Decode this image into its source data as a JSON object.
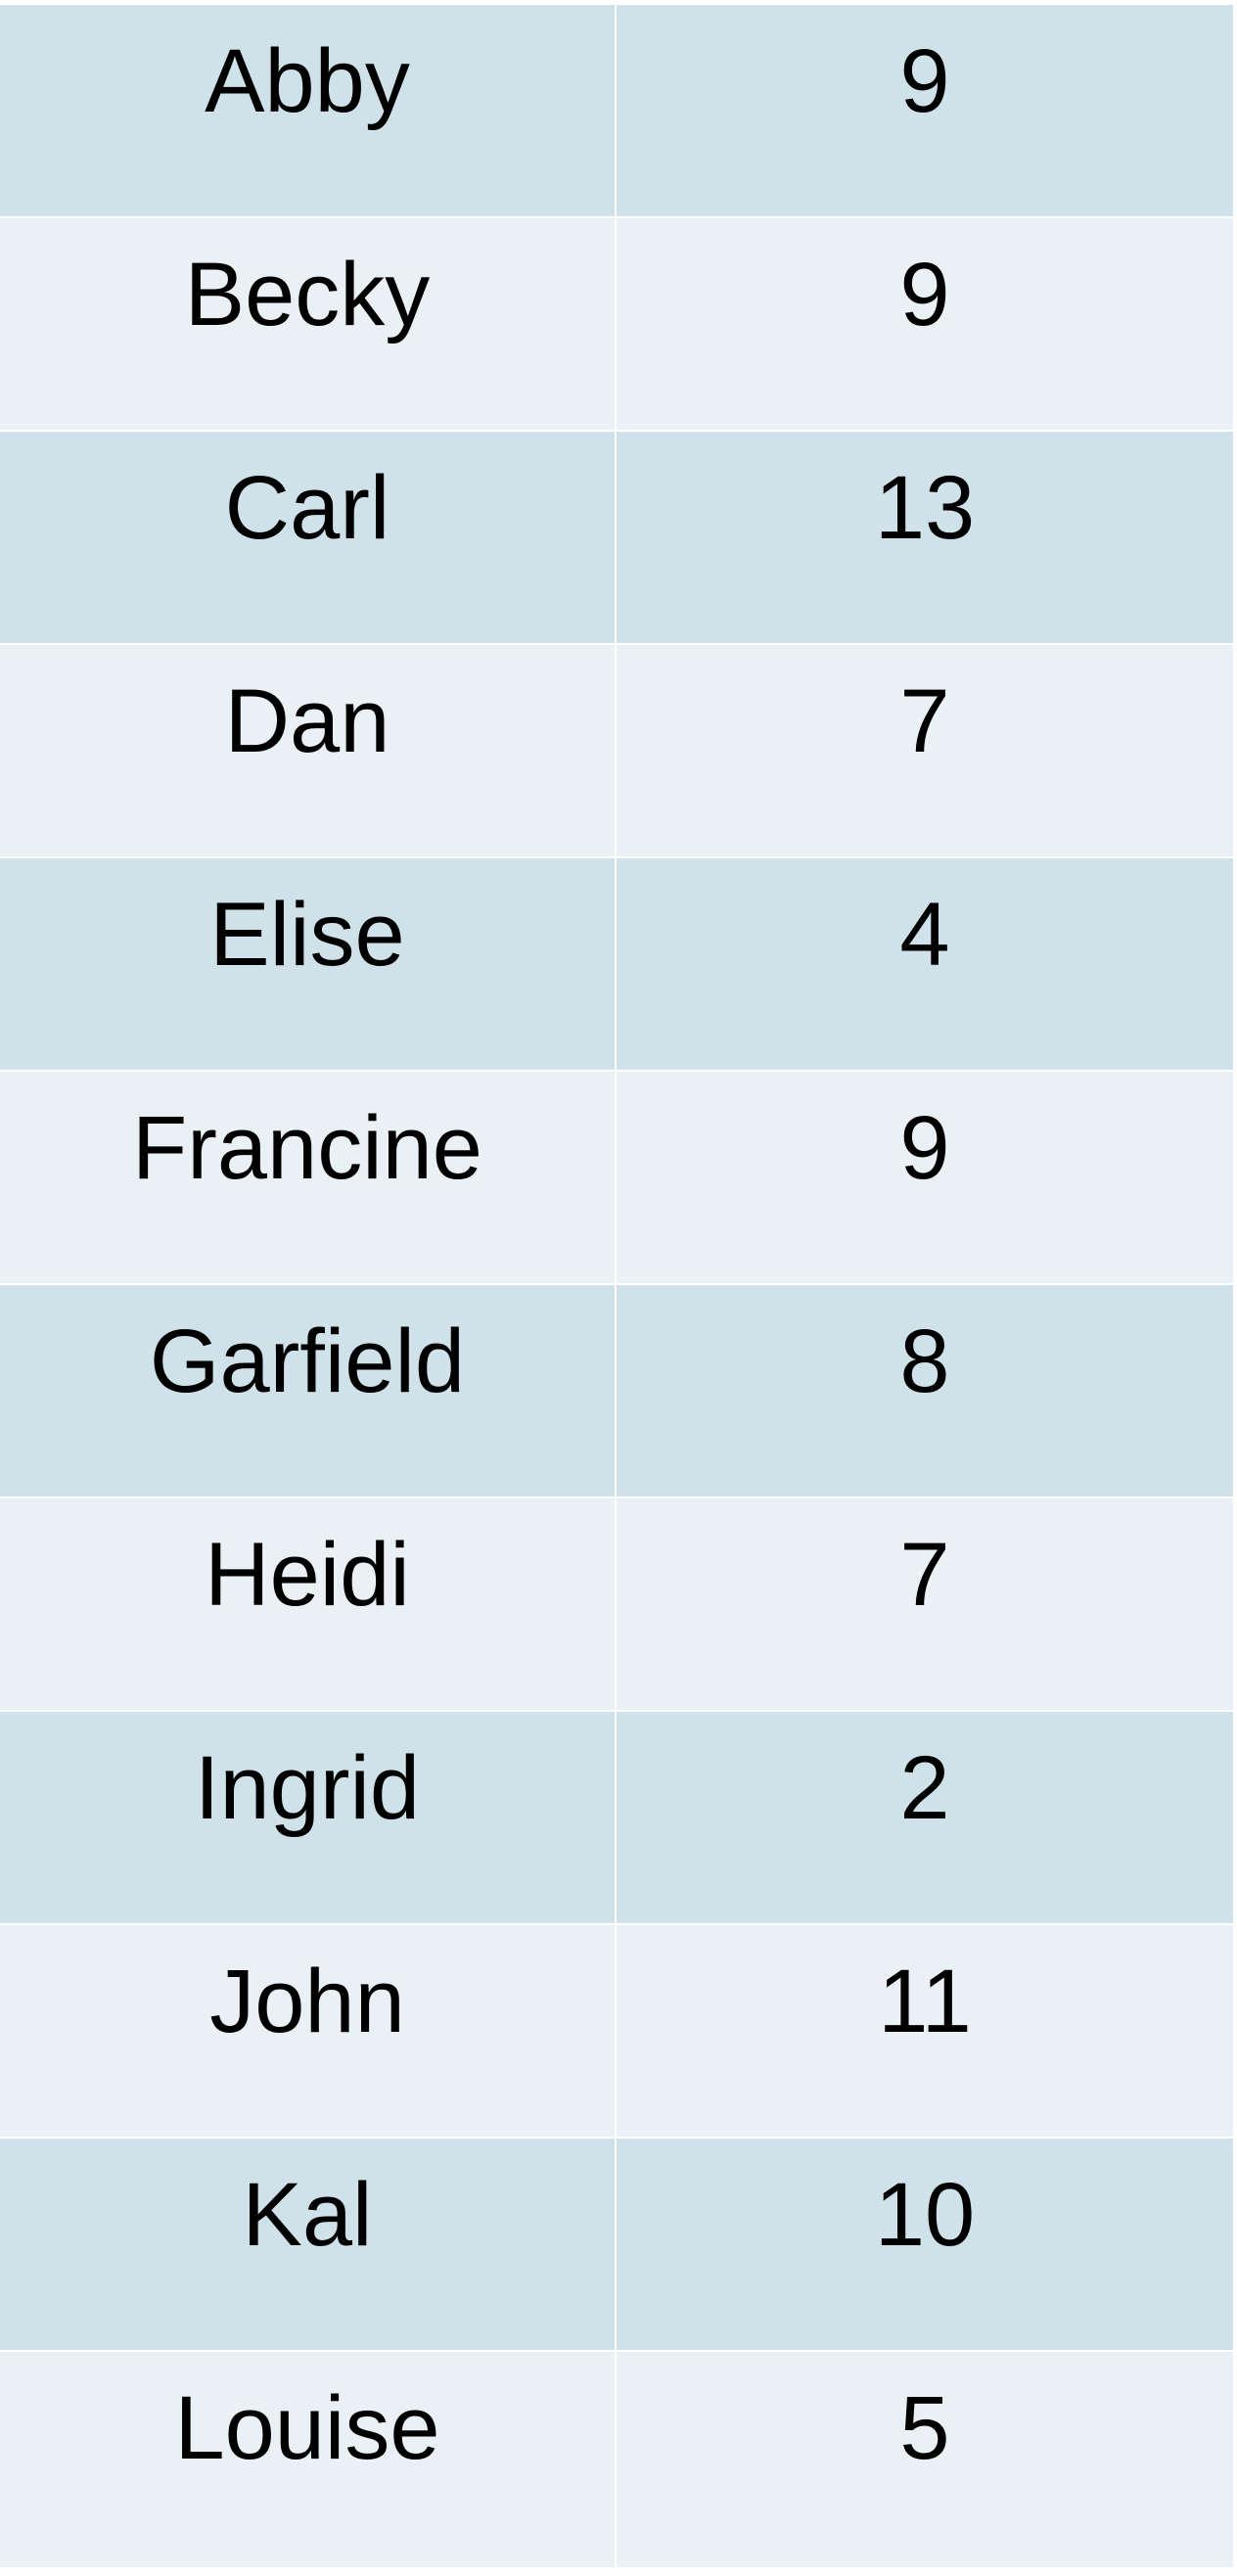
{
  "table": {
    "rows": [
      {
        "name": "Abby",
        "value": "9"
      },
      {
        "name": "Becky",
        "value": "9"
      },
      {
        "name": "Carl",
        "value": "13"
      },
      {
        "name": "Dan",
        "value": "7"
      },
      {
        "name": "Elise",
        "value": "4"
      },
      {
        "name": "Francine",
        "value": "9"
      },
      {
        "name": "Garfield",
        "value": "8"
      },
      {
        "name": "Heidi",
        "value": "7"
      },
      {
        "name": "Ingrid",
        "value": "2"
      },
      {
        "name": "John",
        "value": "11"
      },
      {
        "name": "Kal",
        "value": "10"
      },
      {
        "name": "Louise",
        "value": "5"
      }
    ]
  },
  "colors": {
    "row_dark": "#cfe2ea",
    "row_light": "#e9f1f4",
    "text": "#000000"
  }
}
